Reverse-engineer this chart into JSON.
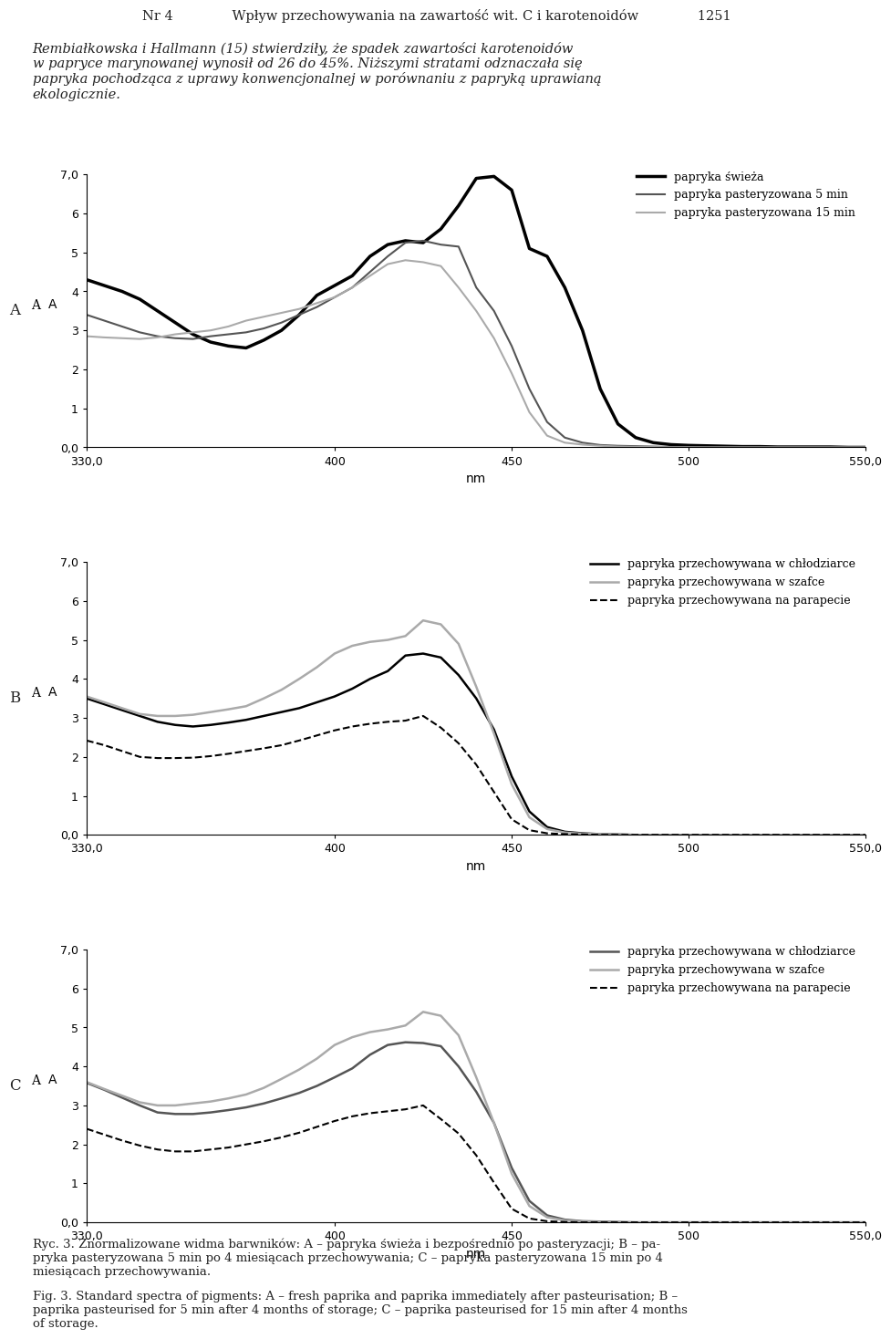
{
  "header_line1": "Nr 4                    Wpływ przechowywania na zawartość wit. C i karotenoidów                   1251",
  "header_para": "Rembiałkowska i Hallmann (15) stwierdziły, że spadek zawartości karotenoidów\nw papryce marynowanej wynosił od 26 do 45%. Niższymi stratami odznaczała się\npapryka pochodząca z uprawy konwencjonalnej w porównaniu z papryką uprawianą\nekologicznie.",
  "caption_ryc": "Ryc. 3. Znormalizowane widma barwników: A – papryka świeża i bezpośrednio po pasteryzacji; B – papryka pasteryzowana 5 min po 4 miesiącach przechowywania; C – papryka pasteryzowana 15 min po 4 miesiącach przechowywania.",
  "caption_fig": "Fig. 3. Standard spectra of pigments: A – fresh paprika and paprika immediately after pasteurisation; B – paprika pasteurised for 5 min after 4 months of storage; C – paprika pasteurised for 15 min after 4 months of storage.",
  "ylabel": "A",
  "xlabel": "nm",
  "xlim": [
    330,
    550
  ],
  "ylim": [
    0.0,
    7.0
  ],
  "yticks": [
    0.0,
    1,
    2,
    3,
    4,
    5,
    6,
    7.0
  ],
  "yticklabels": [
    "0,0",
    "1",
    "2",
    "3",
    "4",
    "5",
    "6",
    "7,0"
  ],
  "xticks": [
    330,
    400,
    450,
    500,
    550
  ],
  "xticklabels": [
    "330,0",
    "400",
    "450",
    "500",
    "550,0"
  ],
  "panel_A": {
    "outer_label": "A",
    "legend": [
      {
        "label": "papryka świeża",
        "color": "#000000",
        "lw": 2.5,
        "ls": "solid"
      },
      {
        "label": "papryka pasteryzowana 5 min",
        "color": "#555555",
        "lw": 1.5,
        "ls": "solid"
      },
      {
        "label": "papryka pasteryzowana 15 min",
        "color": "#aaaaaa",
        "lw": 1.5,
        "ls": "solid"
      }
    ],
    "lines": [
      {
        "x": [
          330,
          335,
          340,
          345,
          350,
          355,
          360,
          365,
          370,
          375,
          380,
          385,
          390,
          395,
          400,
          405,
          410,
          415,
          420,
          425,
          430,
          435,
          440,
          445,
          450,
          455,
          460,
          465,
          470,
          475,
          480,
          485,
          490,
          495,
          500,
          505,
          510,
          515,
          520,
          525,
          530,
          535,
          540,
          545,
          550
        ],
        "y": [
          4.3,
          4.15,
          4.0,
          3.8,
          3.5,
          3.2,
          2.9,
          2.7,
          2.6,
          2.55,
          2.75,
          3.0,
          3.4,
          3.9,
          4.15,
          4.4,
          4.9,
          5.2,
          5.3,
          5.25,
          5.6,
          6.2,
          6.9,
          6.95,
          6.6,
          5.1,
          4.9,
          4.1,
          3.0,
          1.5,
          0.6,
          0.25,
          0.12,
          0.07,
          0.05,
          0.04,
          0.03,
          0.02,
          0.02,
          0.01,
          0.01,
          0.01,
          0.01,
          0.0,
          0.0
        ],
        "color": "#000000",
        "lw": 2.5,
        "ls": "solid"
      },
      {
        "x": [
          330,
          335,
          340,
          345,
          350,
          355,
          360,
          365,
          370,
          375,
          380,
          385,
          390,
          395,
          400,
          405,
          410,
          415,
          420,
          425,
          430,
          435,
          440,
          445,
          450,
          455,
          460,
          465,
          470,
          475,
          480,
          485,
          490,
          495,
          500,
          505,
          510,
          515,
          520,
          525,
          530,
          535,
          540,
          545,
          550
        ],
        "y": [
          3.4,
          3.25,
          3.1,
          2.95,
          2.85,
          2.8,
          2.78,
          2.85,
          2.9,
          2.95,
          3.05,
          3.2,
          3.4,
          3.6,
          3.85,
          4.1,
          4.5,
          4.9,
          5.25,
          5.3,
          5.2,
          5.15,
          4.1,
          3.5,
          2.6,
          1.5,
          0.65,
          0.25,
          0.12,
          0.06,
          0.04,
          0.03,
          0.02,
          0.01,
          0.01,
          0.0,
          0.0,
          0.0,
          0.0,
          0.0,
          0.0,
          0.0,
          0.0,
          0.0,
          0.0
        ],
        "color": "#555555",
        "lw": 1.5,
        "ls": "solid"
      },
      {
        "x": [
          330,
          335,
          340,
          345,
          350,
          355,
          360,
          365,
          370,
          375,
          380,
          385,
          390,
          395,
          400,
          405,
          410,
          415,
          420,
          425,
          430,
          435,
          440,
          445,
          450,
          455,
          460,
          465,
          470,
          475,
          480,
          485,
          490,
          495,
          500,
          505,
          510,
          515,
          520,
          525,
          530,
          535,
          540,
          545,
          550
        ],
        "y": [
          2.85,
          2.82,
          2.8,
          2.78,
          2.82,
          2.9,
          2.95,
          3.0,
          3.1,
          3.25,
          3.35,
          3.45,
          3.55,
          3.7,
          3.85,
          4.1,
          4.4,
          4.7,
          4.8,
          4.75,
          4.65,
          4.1,
          3.5,
          2.8,
          1.9,
          0.9,
          0.3,
          0.12,
          0.07,
          0.04,
          0.02,
          0.01,
          0.01,
          0.0,
          0.0,
          0.0,
          0.0,
          0.0,
          0.0,
          0.0,
          0.0,
          0.0,
          0.0,
          0.0,
          0.0
        ],
        "color": "#aaaaaa",
        "lw": 1.5,
        "ls": "solid"
      }
    ]
  },
  "panel_B": {
    "outer_label": "B",
    "legend": [
      {
        "label": "papryka przechowywana w chłodziarce",
        "color": "#000000",
        "lw": 1.8,
        "ls": "solid"
      },
      {
        "label": "papryka przechowywana w szafce",
        "color": "#aaaaaa",
        "lw": 1.8,
        "ls": "solid"
      },
      {
        "label": "papryka przechowywana na parapecie",
        "color": "#000000",
        "lw": 1.5,
        "ls": "dashed"
      }
    ],
    "lines": [
      {
        "x": [
          330,
          335,
          340,
          345,
          350,
          355,
          360,
          365,
          370,
          375,
          380,
          385,
          390,
          395,
          400,
          405,
          410,
          415,
          420,
          425,
          430,
          435,
          440,
          445,
          450,
          455,
          460,
          465,
          470,
          475,
          480,
          485,
          490,
          495,
          500,
          505,
          510,
          515,
          520,
          525,
          530,
          535,
          540,
          545,
          550
        ],
        "y": [
          3.5,
          3.35,
          3.2,
          3.05,
          2.9,
          2.82,
          2.78,
          2.82,
          2.88,
          2.95,
          3.05,
          3.15,
          3.25,
          3.4,
          3.55,
          3.75,
          4.0,
          4.2,
          4.6,
          4.65,
          4.55,
          4.1,
          3.5,
          2.7,
          1.5,
          0.6,
          0.2,
          0.08,
          0.04,
          0.02,
          0.01,
          0.0,
          0.0,
          0.0,
          0.0,
          0.0,
          0.0,
          0.0,
          0.0,
          0.0,
          0.0,
          0.0,
          0.0,
          0.0,
          0.0
        ],
        "color": "#000000",
        "lw": 1.8,
        "ls": "solid"
      },
      {
        "x": [
          330,
          335,
          340,
          345,
          350,
          355,
          360,
          365,
          370,
          375,
          380,
          385,
          390,
          395,
          400,
          405,
          410,
          415,
          420,
          425,
          430,
          435,
          440,
          445,
          450,
          455,
          460,
          465,
          470,
          475,
          480,
          485,
          490,
          495,
          500,
          505,
          510,
          515,
          520,
          525,
          530,
          535,
          540,
          545,
          550
        ],
        "y": [
          3.55,
          3.4,
          3.25,
          3.1,
          3.05,
          3.05,
          3.08,
          3.15,
          3.22,
          3.3,
          3.5,
          3.72,
          4.0,
          4.3,
          4.65,
          4.85,
          4.95,
          5.0,
          5.1,
          5.5,
          5.4,
          4.9,
          3.8,
          2.6,
          1.3,
          0.45,
          0.15,
          0.06,
          0.03,
          0.02,
          0.01,
          0.0,
          0.0,
          0.0,
          0.0,
          0.0,
          0.0,
          0.0,
          0.0,
          0.0,
          0.0,
          0.0,
          0.0,
          0.0,
          0.0
        ],
        "color": "#aaaaaa",
        "lw": 1.8,
        "ls": "solid"
      },
      {
        "x": [
          330,
          335,
          340,
          345,
          350,
          355,
          360,
          365,
          370,
          375,
          380,
          385,
          390,
          395,
          400,
          405,
          410,
          415,
          420,
          425,
          430,
          435,
          440,
          445,
          450,
          455,
          460,
          465,
          470,
          475,
          480,
          485,
          490,
          495,
          500,
          505,
          510,
          515,
          520,
          525,
          530,
          535,
          540,
          545,
          550
        ],
        "y": [
          2.42,
          2.3,
          2.15,
          2.0,
          1.97,
          1.97,
          1.98,
          2.02,
          2.08,
          2.15,
          2.22,
          2.3,
          2.42,
          2.55,
          2.68,
          2.78,
          2.85,
          2.9,
          2.93,
          3.05,
          2.75,
          2.35,
          1.8,
          1.1,
          0.4,
          0.12,
          0.04,
          0.02,
          0.01,
          0.0,
          0.0,
          0.0,
          0.0,
          0.0,
          0.0,
          0.0,
          0.0,
          0.0,
          0.0,
          0.0,
          0.0,
          0.0,
          0.0,
          0.0,
          0.0
        ],
        "color": "#000000",
        "lw": 1.5,
        "ls": "dashed"
      }
    ]
  },
  "panel_C": {
    "outer_label": "C",
    "legend": [
      {
        "label": "papryka przechowywana w chłodziarce",
        "color": "#555555",
        "lw": 1.8,
        "ls": "solid"
      },
      {
        "label": "papryka przechowywana w szafce",
        "color": "#aaaaaa",
        "lw": 1.8,
        "ls": "solid"
      },
      {
        "label": "papryka przechowywana na parapecie",
        "color": "#000000",
        "lw": 1.5,
        "ls": "dashed"
      }
    ],
    "lines": [
      {
        "x": [
          330,
          335,
          340,
          345,
          350,
          355,
          360,
          365,
          370,
          375,
          380,
          385,
          390,
          395,
          400,
          405,
          410,
          415,
          420,
          425,
          430,
          435,
          440,
          445,
          450,
          455,
          460,
          465,
          470,
          475,
          480,
          485,
          490,
          495,
          500,
          505,
          510,
          515,
          520,
          525,
          530,
          535,
          540,
          545,
          550
        ],
        "y": [
          3.58,
          3.4,
          3.2,
          3.0,
          2.82,
          2.78,
          2.78,
          2.82,
          2.88,
          2.95,
          3.05,
          3.18,
          3.32,
          3.5,
          3.72,
          3.95,
          4.3,
          4.55,
          4.62,
          4.6,
          4.52,
          4.0,
          3.35,
          2.55,
          1.4,
          0.55,
          0.18,
          0.07,
          0.03,
          0.02,
          0.01,
          0.0,
          0.0,
          0.0,
          0.0,
          0.0,
          0.0,
          0.0,
          0.0,
          0.0,
          0.0,
          0.0,
          0.0,
          0.0,
          0.0
        ],
        "color": "#555555",
        "lw": 1.8,
        "ls": "solid"
      },
      {
        "x": [
          330,
          335,
          340,
          345,
          350,
          355,
          360,
          365,
          370,
          375,
          380,
          385,
          390,
          395,
          400,
          405,
          410,
          415,
          420,
          425,
          430,
          435,
          440,
          445,
          450,
          455,
          460,
          465,
          470,
          475,
          480,
          485,
          490,
          495,
          500,
          505,
          510,
          515,
          520,
          525,
          530,
          535,
          540,
          545,
          550
        ],
        "y": [
          3.6,
          3.42,
          3.25,
          3.08,
          3.0,
          3.0,
          3.05,
          3.1,
          3.18,
          3.28,
          3.45,
          3.68,
          3.92,
          4.2,
          4.55,
          4.75,
          4.88,
          4.95,
          5.05,
          5.4,
          5.3,
          4.8,
          3.72,
          2.55,
          1.25,
          0.42,
          0.13,
          0.05,
          0.02,
          0.01,
          0.0,
          0.0,
          0.0,
          0.0,
          0.0,
          0.0,
          0.0,
          0.0,
          0.0,
          0.0,
          0.0,
          0.0,
          0.0,
          0.0,
          0.0
        ],
        "color": "#aaaaaa",
        "lw": 1.8,
        "ls": "solid"
      },
      {
        "x": [
          330,
          335,
          340,
          345,
          350,
          355,
          360,
          365,
          370,
          375,
          380,
          385,
          390,
          395,
          400,
          405,
          410,
          415,
          420,
          425,
          430,
          435,
          440,
          445,
          450,
          455,
          460,
          465,
          470,
          475,
          480,
          485,
          490,
          495,
          500,
          505,
          510,
          515,
          520,
          525,
          530,
          535,
          540,
          545,
          550
        ],
        "y": [
          2.4,
          2.25,
          2.1,
          1.97,
          1.87,
          1.82,
          1.82,
          1.87,
          1.92,
          2.0,
          2.08,
          2.18,
          2.3,
          2.45,
          2.6,
          2.72,
          2.8,
          2.85,
          2.9,
          3.0,
          2.65,
          2.28,
          1.72,
          1.02,
          0.35,
          0.1,
          0.03,
          0.01,
          0.0,
          0.0,
          0.0,
          0.0,
          0.0,
          0.0,
          0.0,
          0.0,
          0.0,
          0.0,
          0.0,
          0.0,
          0.0,
          0.0,
          0.0,
          0.0,
          0.0
        ],
        "color": "#000000",
        "lw": 1.5,
        "ls": "dashed"
      }
    ]
  }
}
